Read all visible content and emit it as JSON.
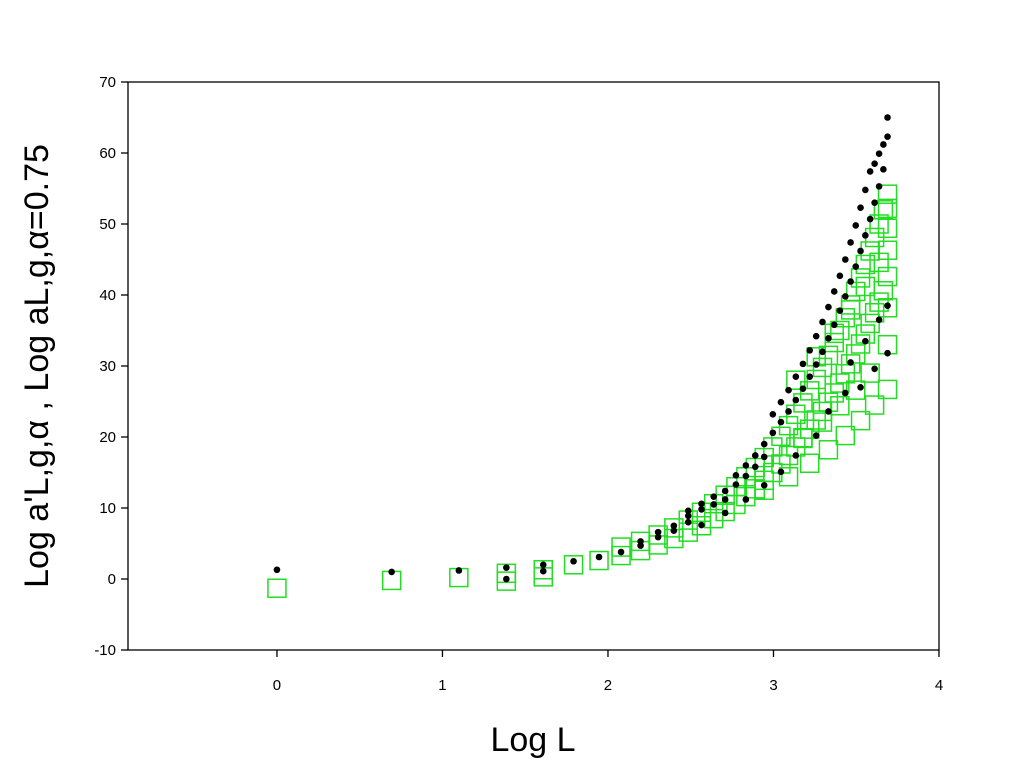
{
  "chart_data": {
    "type": "scatter",
    "title": "",
    "xlabel": "Log L",
    "ylabel": "Log a'L,g,α , Log aL,g,α=0.75",
    "xlim": [
      -0.9,
      4
    ],
    "ylim": [
      -10,
      70
    ],
    "x_ticks": [
      "0",
      "1",
      "2",
      "3",
      "4"
    ],
    "y_ticks": [
      "-10",
      "0",
      "10",
      "20",
      "30",
      "40",
      "50",
      "60",
      "70"
    ],
    "grid": false,
    "legend": "none",
    "colors": {
      "dots": "#000000",
      "squares": "#22dd22"
    },
    "series": [
      {
        "marker": "filled-circle",
        "color": "#000000",
        "points": [
          [
            0,
            1.3
          ],
          [
            0.693,
            1.0
          ],
          [
            1.099,
            1.2
          ],
          [
            1.386,
            1.6
          ],
          [
            1.386,
            0.0
          ],
          [
            1.609,
            2.0
          ],
          [
            1.609,
            1.1
          ],
          [
            1.792,
            2.5
          ],
          [
            1.946,
            3.1
          ],
          [
            2.079,
            3.8
          ],
          [
            2.197,
            4.7
          ],
          [
            2.197,
            5.3
          ],
          [
            2.303,
            5.9
          ],
          [
            2.303,
            6.6
          ],
          [
            2.398,
            6.8
          ],
          [
            2.398,
            7.5
          ],
          [
            2.485,
            8.0
          ],
          [
            2.485,
            8.9
          ],
          [
            2.485,
            9.6
          ],
          [
            2.565,
            9.8
          ],
          [
            2.565,
            10.6
          ],
          [
            2.639,
            10.5
          ],
          [
            2.639,
            11.6
          ],
          [
            2.708,
            11.2
          ],
          [
            2.708,
            12.4
          ],
          [
            2.773,
            13.3
          ],
          [
            2.773,
            14.6
          ],
          [
            2.833,
            14.5
          ],
          [
            2.833,
            16.0
          ],
          [
            2.89,
            15.8
          ],
          [
            2.89,
            17.4
          ],
          [
            2.944,
            17.2
          ],
          [
            2.944,
            19.0
          ],
          [
            2.996,
            20.6
          ],
          [
            2.996,
            23.2
          ],
          [
            3.045,
            22.1
          ],
          [
            3.045,
            24.9
          ],
          [
            3.091,
            23.6
          ],
          [
            3.091,
            26.6
          ],
          [
            3.135,
            25.2
          ],
          [
            3.135,
            28.5
          ],
          [
            3.178,
            26.8
          ],
          [
            3.178,
            30.3
          ],
          [
            3.219,
            28.5
          ],
          [
            3.219,
            32.2
          ],
          [
            3.258,
            30.2
          ],
          [
            3.258,
            34.2
          ],
          [
            3.296,
            32.0
          ],
          [
            3.296,
            36.2
          ],
          [
            3.332,
            33.9
          ],
          [
            3.332,
            38.3
          ],
          [
            3.367,
            35.8
          ],
          [
            3.367,
            40.5
          ],
          [
            3.401,
            37.8
          ],
          [
            3.401,
            42.7
          ],
          [
            3.434,
            39.8
          ],
          [
            3.434,
            45.0
          ],
          [
            3.466,
            41.9
          ],
          [
            3.466,
            47.4
          ],
          [
            3.497,
            44.0
          ],
          [
            3.497,
            49.8
          ],
          [
            3.526,
            46.2
          ],
          [
            3.526,
            52.3
          ],
          [
            3.555,
            48.4
          ],
          [
            3.555,
            54.8
          ],
          [
            3.584,
            50.7
          ],
          [
            3.584,
            57.4
          ],
          [
            3.611,
            53.0
          ],
          [
            3.611,
            58.5
          ],
          [
            3.638,
            55.3
          ],
          [
            3.638,
            59.9
          ],
          [
            3.664,
            57.7
          ],
          [
            3.664,
            61.2
          ],
          [
            3.689,
            62.3
          ],
          [
            3.689,
            65.0
          ],
          [
            3.466,
            30.5
          ],
          [
            3.555,
            33.5
          ],
          [
            3.638,
            36.5
          ],
          [
            3.689,
            38.5
          ],
          [
            3.526,
            27.0
          ],
          [
            3.611,
            29.6
          ],
          [
            3.689,
            31.8
          ],
          [
            3.332,
            23.6
          ],
          [
            3.434,
            26.2
          ],
          [
            3.258,
            20.2
          ],
          [
            3.135,
            17.4
          ],
          [
            3.045,
            15.1
          ],
          [
            2.944,
            13.2
          ],
          [
            2.833,
            11.2
          ],
          [
            2.708,
            9.3
          ],
          [
            2.565,
            7.6
          ]
        ]
      },
      {
        "marker": "open-square",
        "color": "#22dd22",
        "points": [
          [
            0,
            -1.3
          ],
          [
            0.693,
            -0.2
          ],
          [
            1.099,
            0.2
          ],
          [
            1.386,
            0.8
          ],
          [
            1.386,
            -0.3
          ],
          [
            1.609,
            1.3
          ],
          [
            1.609,
            0.3
          ],
          [
            1.792,
            2.0
          ],
          [
            1.946,
            2.6
          ],
          [
            2.079,
            3.3
          ],
          [
            2.079,
            4.5
          ],
          [
            2.197,
            4.0
          ],
          [
            2.197,
            5.3
          ],
          [
            2.303,
            4.8
          ],
          [
            2.303,
            6.2
          ],
          [
            2.398,
            5.7
          ],
          [
            2.398,
            7.2
          ],
          [
            2.485,
            6.6
          ],
          [
            2.485,
            8.3
          ],
          [
            2.565,
            7.5
          ],
          [
            2.565,
            9.4
          ],
          [
            2.639,
            8.5
          ],
          [
            2.639,
            10.6
          ],
          [
            2.708,
            9.5
          ],
          [
            2.708,
            11.8
          ],
          [
            2.773,
            10.5
          ],
          [
            2.773,
            13.0
          ],
          [
            2.833,
            11.6
          ],
          [
            2.833,
            14.4
          ],
          [
            2.89,
            12.7
          ],
          [
            2.89,
            15.7
          ],
          [
            2.944,
            13.9
          ],
          [
            2.944,
            17.1
          ],
          [
            2.996,
            15.0
          ],
          [
            2.996,
            18.6
          ],
          [
            3.045,
            16.2
          ],
          [
            3.045,
            20.1
          ],
          [
            3.091,
            17.4
          ],
          [
            3.091,
            21.6
          ],
          [
            3.135,
            18.6
          ],
          [
            3.135,
            23.2
          ],
          [
            3.178,
            19.8
          ],
          [
            3.178,
            24.8
          ],
          [
            3.219,
            21.1
          ],
          [
            3.219,
            26.5
          ],
          [
            3.258,
            22.4
          ],
          [
            3.258,
            28.1
          ],
          [
            3.296,
            23.6
          ],
          [
            3.296,
            29.8
          ],
          [
            3.332,
            24.9
          ],
          [
            3.332,
            31.5
          ],
          [
            3.367,
            26.2
          ],
          [
            3.367,
            33.3
          ],
          [
            3.401,
            27.6
          ],
          [
            3.401,
            35.0
          ],
          [
            3.434,
            28.9
          ],
          [
            3.434,
            36.8
          ],
          [
            3.466,
            30.3
          ],
          [
            3.466,
            38.6
          ],
          [
            3.497,
            31.7
          ],
          [
            3.497,
            40.5
          ],
          [
            3.526,
            33.1
          ],
          [
            3.526,
            42.4
          ],
          [
            3.555,
            34.5
          ],
          [
            3.555,
            44.3
          ],
          [
            3.584,
            36.0
          ],
          [
            3.584,
            46.2
          ],
          [
            3.611,
            37.5
          ],
          [
            3.611,
            48.1
          ],
          [
            3.638,
            39.0
          ],
          [
            3.638,
            50.0
          ],
          [
            3.664,
            40.6
          ],
          [
            3.664,
            52.0
          ],
          [
            3.689,
            26.7
          ],
          [
            3.689,
            33.0
          ],
          [
            3.689,
            38.2
          ],
          [
            3.689,
            42.6
          ],
          [
            3.689,
            46.3
          ],
          [
            3.689,
            49.4
          ],
          [
            3.689,
            52.2
          ],
          [
            3.689,
            54.2
          ],
          [
            3.611,
            24.5
          ],
          [
            3.526,
            22.3
          ],
          [
            3.434,
            20.2
          ],
          [
            3.332,
            18.2
          ],
          [
            3.219,
            16.3
          ],
          [
            3.091,
            14.4
          ],
          [
            2.944,
            12.5
          ],
          [
            3.584,
            29.0
          ],
          [
            3.497,
            26.6
          ],
          [
            3.401,
            24.4
          ],
          [
            3.296,
            22.1
          ],
          [
            3.178,
            19.9
          ],
          [
            3.638,
            44.6
          ],
          [
            3.555,
            41.2
          ],
          [
            3.466,
            37.9
          ],
          [
            3.367,
            34.6
          ],
          [
            3.258,
            31.3
          ],
          [
            3.135,
            28.0
          ]
        ]
      }
    ]
  }
}
